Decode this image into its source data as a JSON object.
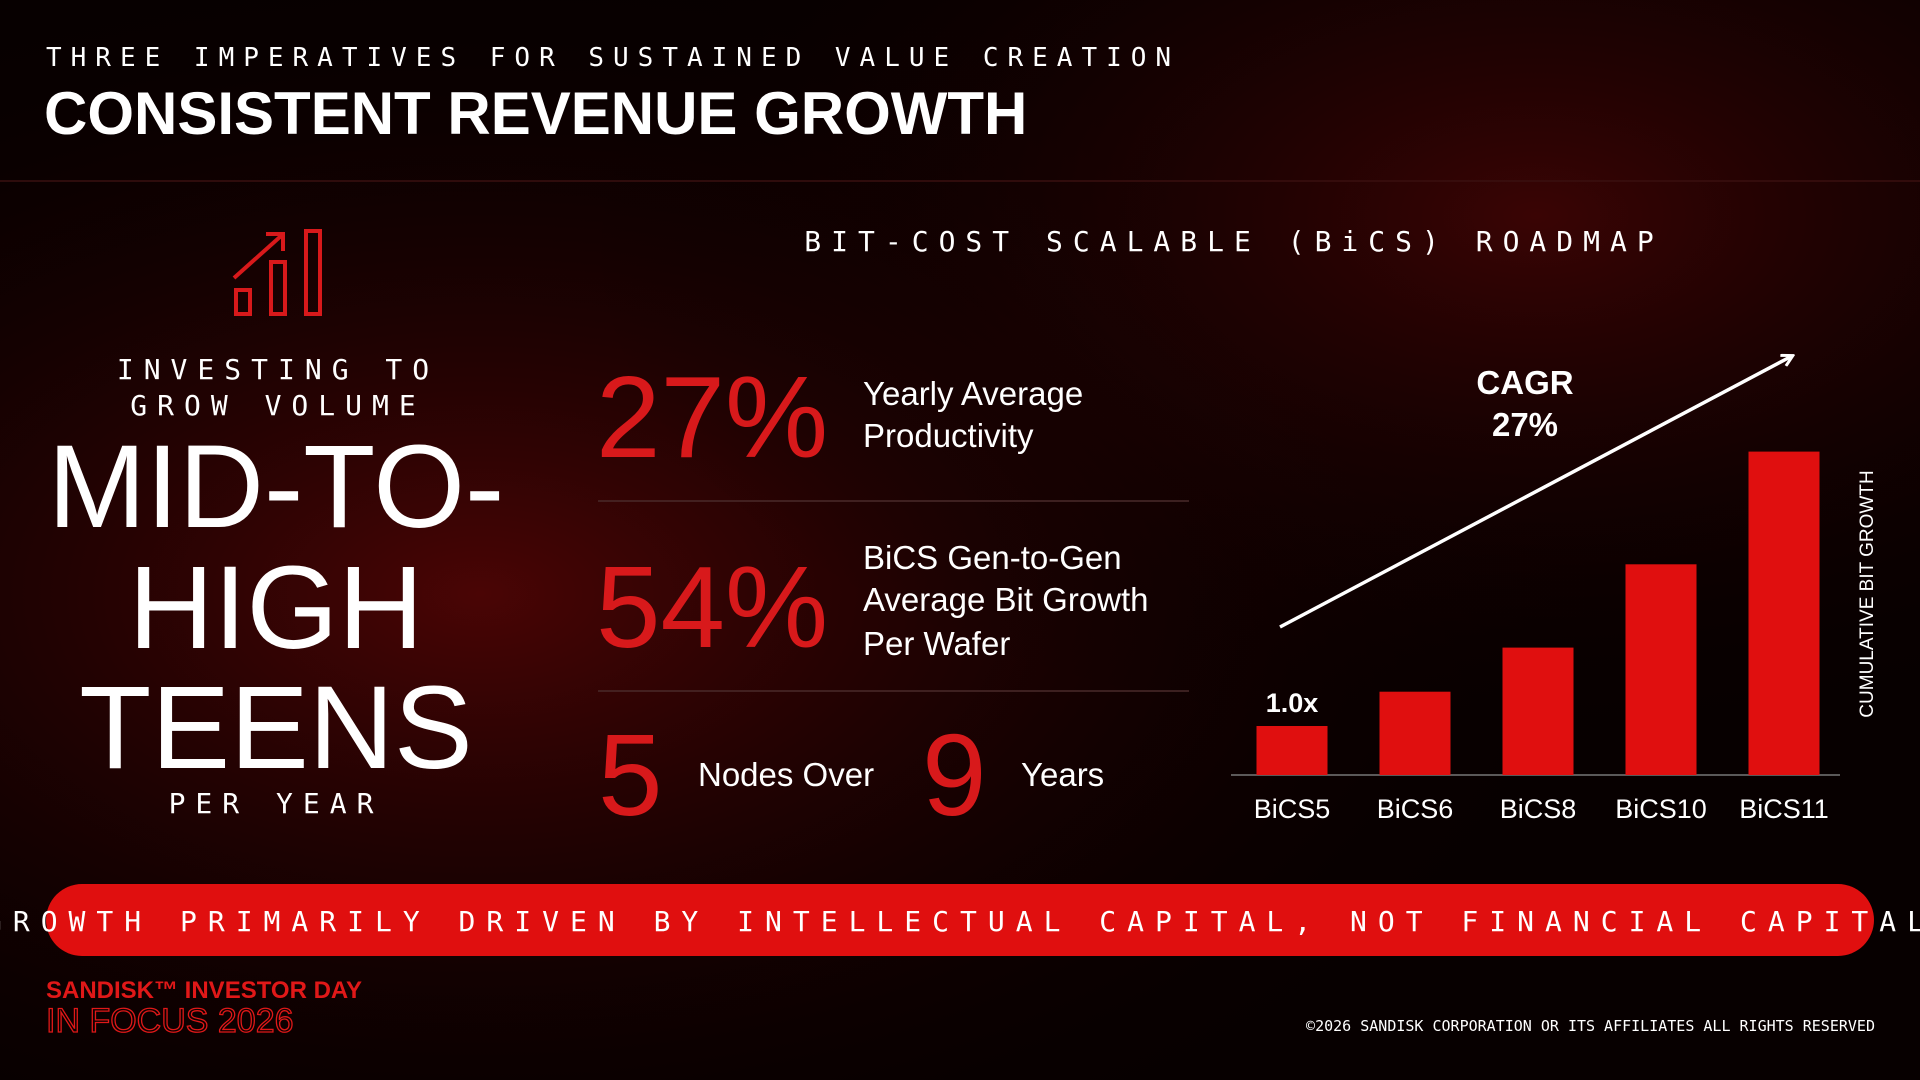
{
  "header": {
    "kicker": "THREE IMPERATIVES FOR SUSTAINED VALUE CREATION",
    "title": "CONSISTENT REVENUE GROWTH"
  },
  "left": {
    "label_lines": [
      "INVESTING TO",
      "GROW VOLUME"
    ],
    "headline_lines": [
      "MID-TO-",
      "HIGH",
      "TEENS"
    ],
    "sublabel": "PER YEAR"
  },
  "roadmap": {
    "title": "BIT-COST SCALABLE (BiCS) ROADMAP",
    "stats": [
      {
        "value": "27%",
        "label_lines": [
          "Yearly Average",
          "Productivity"
        ]
      },
      {
        "value": "54%",
        "label_lines": [
          "BiCS Gen-to-Gen",
          "Average Bit Growth",
          "Per Wafer"
        ]
      }
    ],
    "nodes": {
      "count": "5",
      "middle": "Nodes Over",
      "years": "9",
      "end": "Years"
    }
  },
  "chart_data": {
    "type": "bar",
    "categories": [
      "BiCS5",
      "BiCS6",
      "BiCS8",
      "BiCS10",
      "BiCS11"
    ],
    "values": [
      1.0,
      1.7,
      2.6,
      4.3,
      6.6
    ],
    "value_labels": [
      "1.0x",
      null,
      null,
      null,
      null
    ],
    "color": "#e00f0f",
    "annotation_lines": [
      "CAGR",
      "27%"
    ],
    "y_label": "CUMULATIVE BIT GROWTH"
  },
  "banner": "GROWTH PRIMARILY DRIVEN BY INTELLECTUAL CAPITAL, NOT FINANCIAL CAPITAL",
  "footer": {
    "logo_lines": [
      "SANDISK™ INVESTOR DAY",
      "IN FOCUS 2026"
    ],
    "copyright": "©2026 SANDISK CORPORATION OR ITS AFFILIATES ALL RIGHTS RESERVED"
  }
}
